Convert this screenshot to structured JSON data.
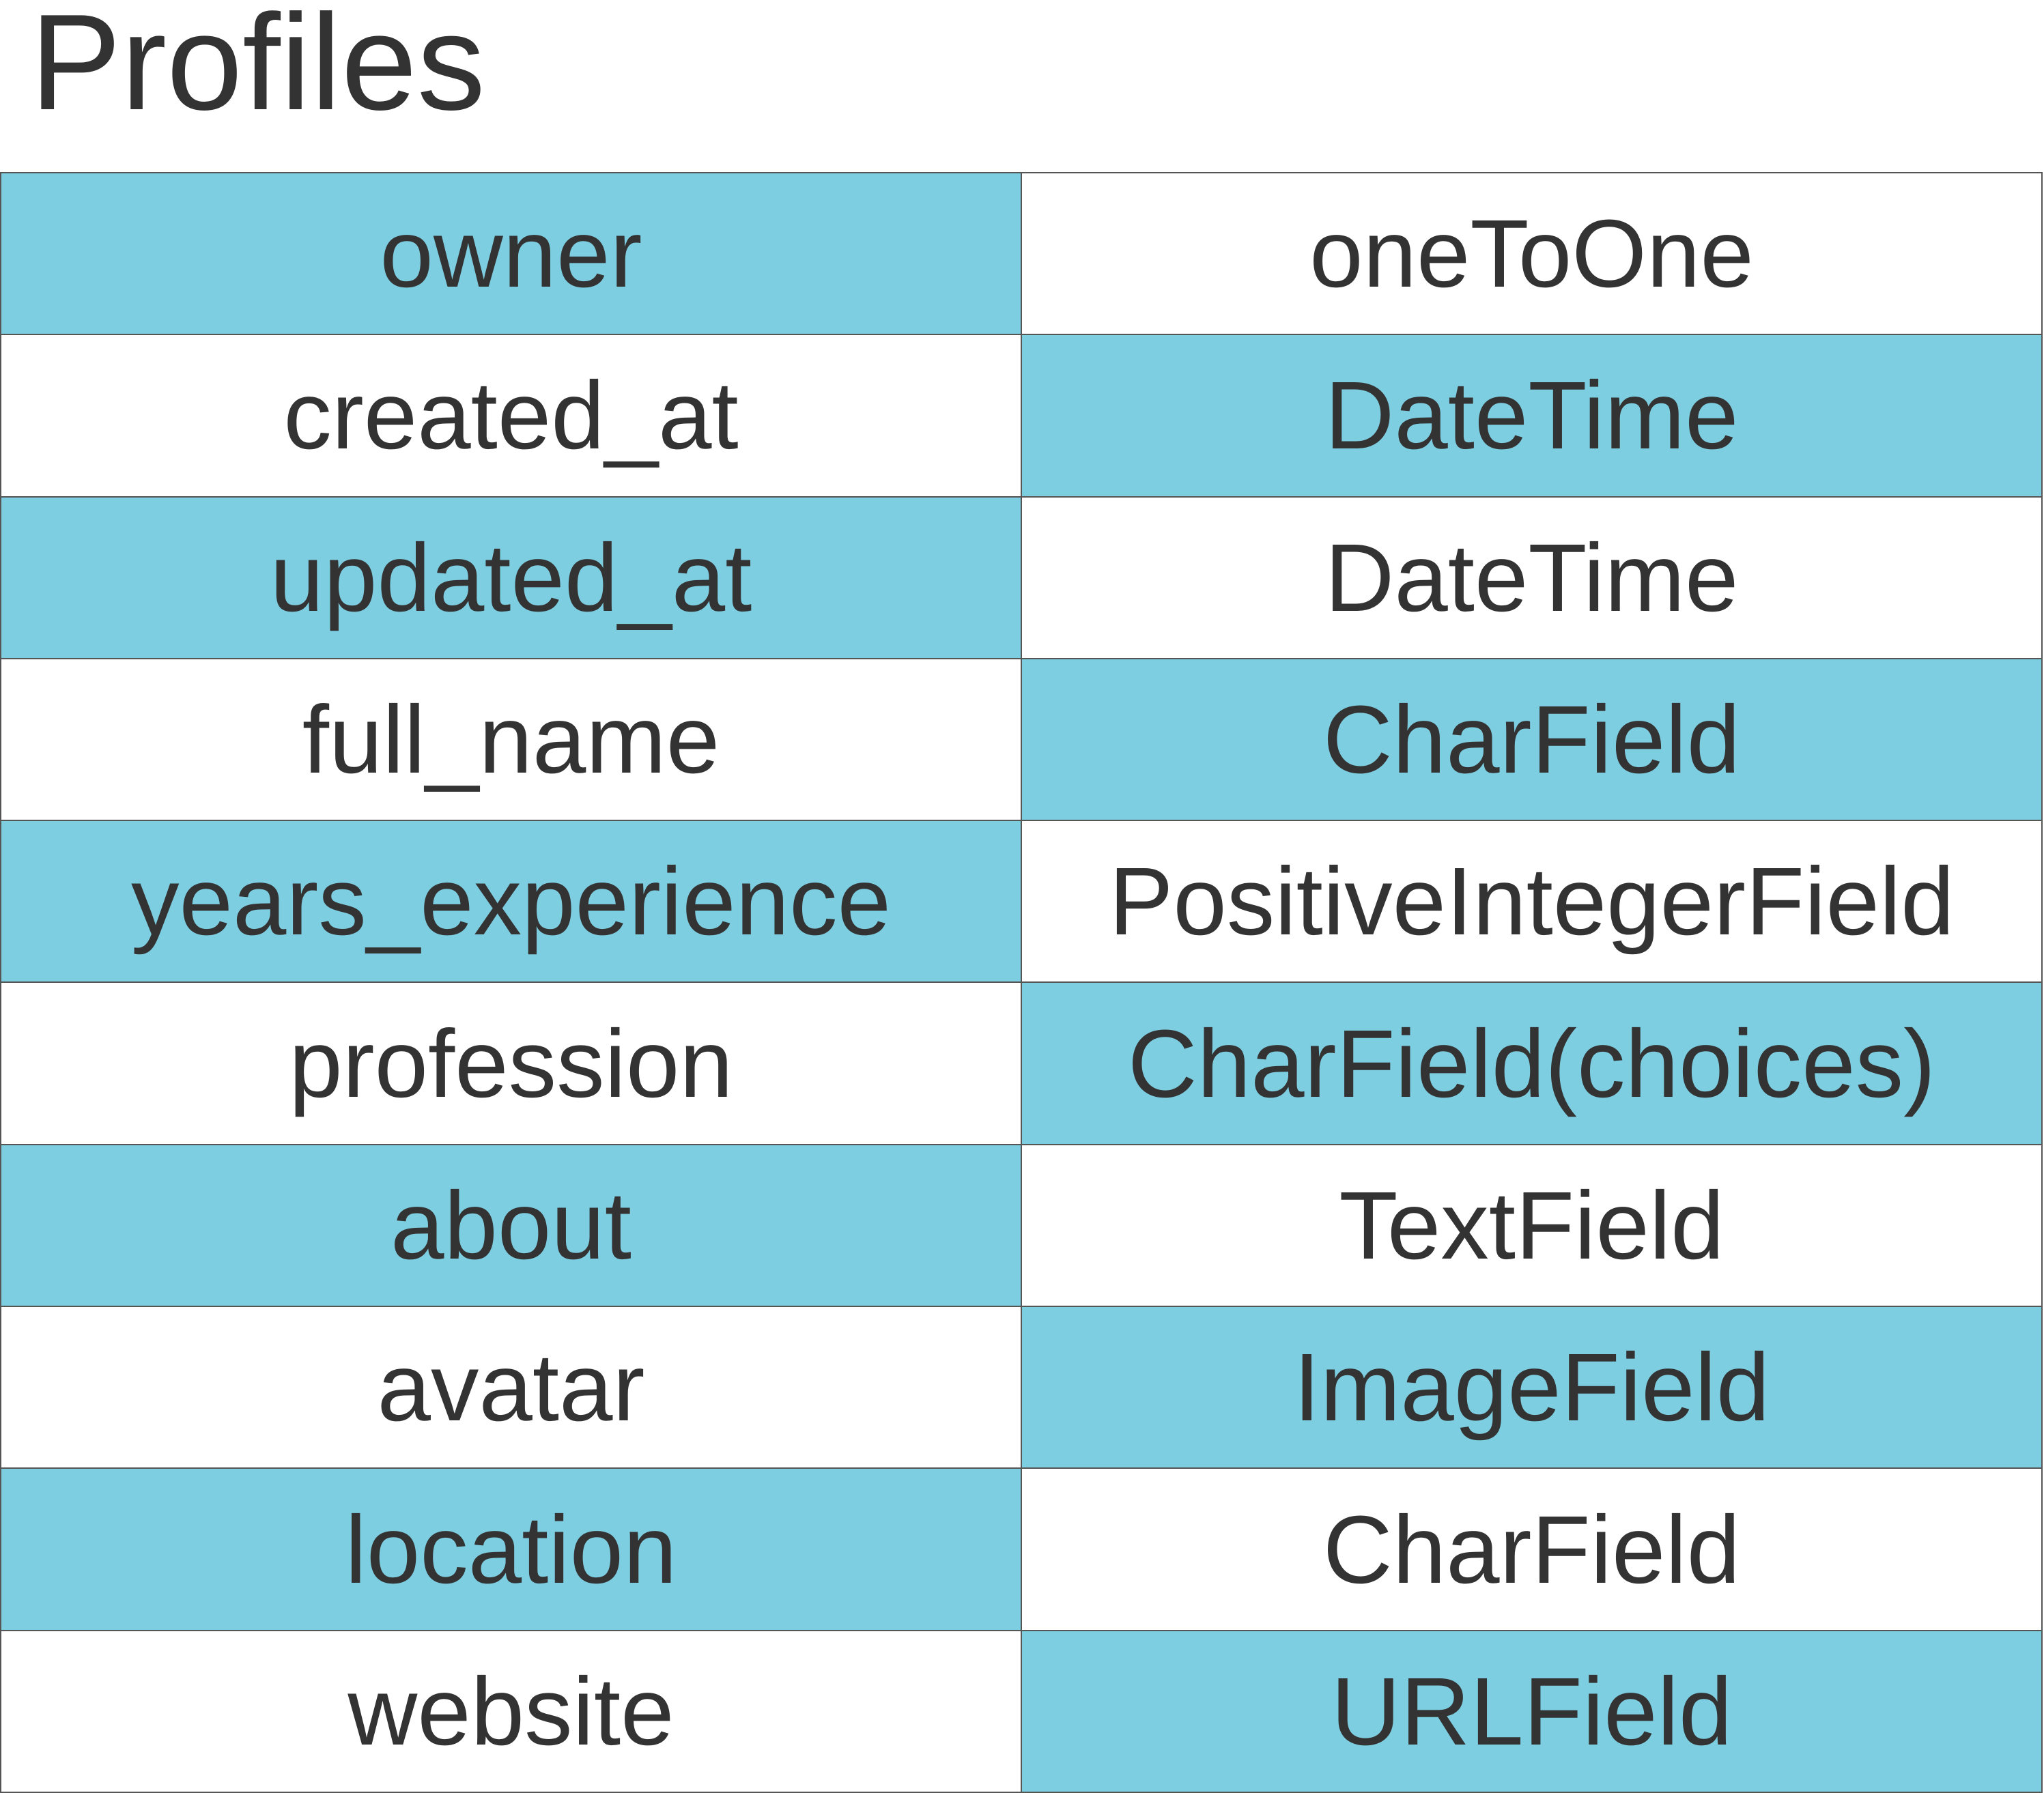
{
  "title": "Profiles",
  "colors": {
    "highlight": "#7ecee2",
    "background": "#ffffff",
    "text": "#333333",
    "border": "#555555"
  },
  "rows": [
    {
      "field": "owner",
      "type": "oneToOne"
    },
    {
      "field": "created_at",
      "type": "DateTime"
    },
    {
      "field": "updated_at",
      "type": "DateTime"
    },
    {
      "field": "full_name",
      "type": "CharField"
    },
    {
      "field": "years_experience",
      "type": "PositiveIntegerField"
    },
    {
      "field": "profession",
      "type": "CharField(choices)"
    },
    {
      "field": "about",
      "type": "TextField"
    },
    {
      "field": "avatar",
      "type": "ImageField"
    },
    {
      "field": "location",
      "type": "CharField"
    },
    {
      "field": "website",
      "type": "URLField"
    }
  ]
}
